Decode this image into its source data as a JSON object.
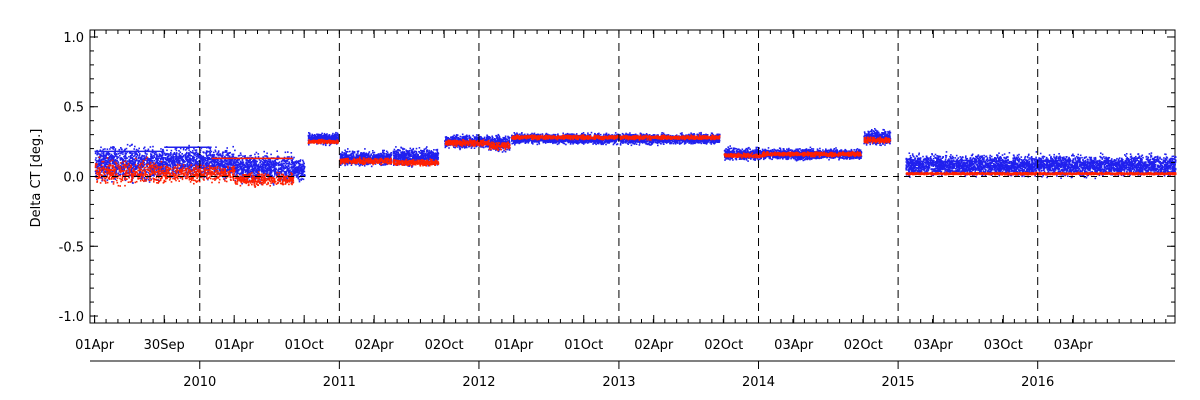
{
  "chart_data": {
    "type": "scatter",
    "title": "",
    "xlabel": "",
    "ylabel": "Delta CT [deg.]",
    "ylim": [
      -1.05,
      1.05
    ],
    "xlim": [
      "2009-03-20",
      "2016-12-25"
    ],
    "grid": false,
    "y_ticks": [
      {
        "value": 1.0,
        "label": "1.0"
      },
      {
        "value": 0.5,
        "label": "0.5"
      },
      {
        "value": 0.0,
        "label": "0.0"
      },
      {
        "value": -0.5,
        "label": "-0.5"
      },
      {
        "value": -1.0,
        "label": "-1.0"
      }
    ],
    "x_date_ticks": [
      {
        "date": "2009-04-01",
        "label": "01Apr"
      },
      {
        "date": "2009-09-30",
        "label": "30Sep"
      },
      {
        "date": "2010-04-01",
        "label": "01Apr"
      },
      {
        "date": "2010-10-01",
        "label": "01Oct"
      },
      {
        "date": "2011-04-02",
        "label": "02Apr"
      },
      {
        "date": "2011-10-02",
        "label": "02Oct"
      },
      {
        "date": "2012-04-01",
        "label": "01Apr"
      },
      {
        "date": "2012-10-01",
        "label": "01Oct"
      },
      {
        "date": "2013-04-02",
        "label": "02Apr"
      },
      {
        "date": "2013-10-02",
        "label": "02Oct"
      },
      {
        "date": "2014-04-03",
        "label": "03Apr"
      },
      {
        "date": "2014-10-02",
        "label": "02Oct"
      },
      {
        "date": "2015-04-03",
        "label": "03Apr"
      },
      {
        "date": "2015-10-03",
        "label": "03Oct"
      },
      {
        "date": "2016-04-03",
        "label": "03Apr"
      }
    ],
    "year_labels": [
      {
        "date": "2010-01-01",
        "label": "2010"
      },
      {
        "date": "2011-01-01",
        "label": "2011"
      },
      {
        "date": "2012-01-01",
        "label": "2012"
      },
      {
        "date": "2013-01-01",
        "label": "2013"
      },
      {
        "date": "2014-01-01",
        "label": "2014"
      },
      {
        "date": "2015-01-01",
        "label": "2015"
      },
      {
        "date": "2016-01-01",
        "label": "2016"
      }
    ],
    "vertical_dashed_lines": [
      "2010-01-01",
      "2011-01-01",
      "2012-01-01",
      "2013-01-01",
      "2014-01-01",
      "2015-01-01",
      "2016-01-01"
    ],
    "horizontal_dashed_line": 0.0,
    "series": [
      {
        "color": "#2020ee",
        "kind": "scatter",
        "segments": [
          {
            "start": "2009-04-01",
            "end": "2009-09-30",
            "level": 0.09,
            "spread": 0.16
          },
          {
            "start": "2009-09-30",
            "end": "2010-04-01",
            "level": 0.1,
            "spread": 0.14
          },
          {
            "start": "2010-04-01",
            "end": "2010-09-01",
            "level": 0.06,
            "spread": 0.14
          },
          {
            "start": "2010-09-01",
            "end": "2010-10-01",
            "level": 0.05,
            "spread": 0.1
          },
          {
            "start": "2010-10-10",
            "end": "2010-12-28",
            "level": 0.27,
            "spread": 0.05
          },
          {
            "start": "2011-01-01",
            "end": "2011-05-15",
            "level": 0.13,
            "spread": 0.07
          },
          {
            "start": "2011-05-20",
            "end": "2011-09-15",
            "level": 0.14,
            "spread": 0.08
          },
          {
            "start": "2011-10-02",
            "end": "2012-01-25",
            "level": 0.25,
            "spread": 0.06
          },
          {
            "start": "2012-01-25",
            "end": "2012-03-20",
            "level": 0.24,
            "spread": 0.08
          },
          {
            "start": "2012-03-25",
            "end": "2013-09-20",
            "level": 0.27,
            "spread": 0.05
          },
          {
            "start": "2013-10-02",
            "end": "2014-01-10",
            "level": 0.16,
            "spread": 0.06
          },
          {
            "start": "2014-01-10",
            "end": "2014-09-25",
            "level": 0.16,
            "spread": 0.05
          },
          {
            "start": "2014-10-02",
            "end": "2014-12-10",
            "level": 0.28,
            "spread": 0.07
          },
          {
            "start": "2015-01-20",
            "end": "2016-12-25",
            "level": 0.08,
            "spread": 0.1
          }
        ]
      },
      {
        "color": "#ff2000",
        "kind": "scatter",
        "segments": [
          {
            "start": "2009-04-01",
            "end": "2009-09-30",
            "level": 0.03,
            "spread": 0.12
          },
          {
            "start": "2009-09-30",
            "end": "2010-04-01",
            "level": 0.02,
            "spread": 0.08
          },
          {
            "start": "2010-04-01",
            "end": "2010-09-01",
            "level": -0.02,
            "spread": 0.06
          },
          {
            "start": "2010-10-10",
            "end": "2010-12-28",
            "level": 0.25,
            "spread": 0.02
          },
          {
            "start": "2011-01-01",
            "end": "2011-05-15",
            "level": 0.11,
            "spread": 0.03
          },
          {
            "start": "2011-05-20",
            "end": "2011-09-15",
            "level": 0.1,
            "spread": 0.03
          },
          {
            "start": "2011-10-02",
            "end": "2012-01-25",
            "level": 0.24,
            "spread": 0.03
          },
          {
            "start": "2012-01-25",
            "end": "2012-03-20",
            "level": 0.22,
            "spread": 0.04
          },
          {
            "start": "2012-03-25",
            "end": "2013-09-20",
            "level": 0.28,
            "spread": 0.02
          },
          {
            "start": "2013-10-02",
            "end": "2014-01-10",
            "level": 0.15,
            "spread": 0.02
          },
          {
            "start": "2014-01-10",
            "end": "2014-09-25",
            "level": 0.16,
            "spread": 0.02
          },
          {
            "start": "2014-10-02",
            "end": "2014-12-10",
            "level": 0.26,
            "spread": 0.03
          },
          {
            "start": "2015-01-20",
            "end": "2016-12-25",
            "level": 0.02,
            "spread": 0.01
          }
        ]
      }
    ],
    "step_levels": [
      {
        "color": "#2020ee",
        "start": "2009-04-01",
        "end": "2009-09-30",
        "value": 0.18
      },
      {
        "color": "#2020ee",
        "start": "2009-09-30",
        "end": "2010-02-01",
        "value": 0.21
      },
      {
        "color": "#2020ee",
        "start": "2010-02-01",
        "end": "2010-09-01",
        "value": 0.13
      },
      {
        "color": "#ff2000",
        "start": "2010-02-01",
        "end": "2010-09-01",
        "value": 0.13
      }
    ]
  }
}
